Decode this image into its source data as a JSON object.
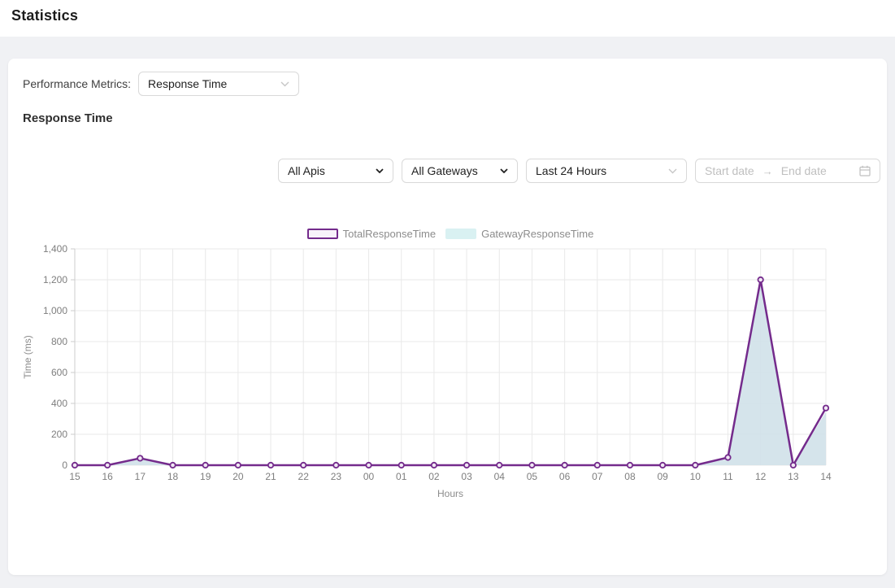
{
  "page": {
    "title": "Statistics",
    "background": "#f0f1f4"
  },
  "card": {
    "metrics": {
      "label": "Performance Metrics:",
      "value": "Response Time"
    },
    "heading": "Response Time",
    "filters": {
      "api": {
        "value": "All Apis"
      },
      "gateway": {
        "value": "All Gateways"
      },
      "time_range": {
        "value": "Last 24 Hours"
      },
      "date_range": {
        "start_placeholder": "Start date",
        "end_placeholder": "End date",
        "separator": "→"
      }
    }
  },
  "icons": {
    "metric_select_chevron": "chevron-down",
    "api_select_chevron": "chevron-down",
    "gateway_select_chevron": "chevron-down",
    "range_select_chevron": "chevron-down",
    "date_picker_calendar": "calendar",
    "range_separator": "arrow-right"
  },
  "chart_data": {
    "type": "line",
    "title": "",
    "xlabel": "Hours",
    "ylabel": "Time (ms)",
    "ylim": [
      0,
      1400
    ],
    "y_tick_step": 200,
    "grid": true,
    "legend_position": "top",
    "categories": [
      "15",
      "16",
      "17",
      "18",
      "19",
      "20",
      "21",
      "22",
      "23",
      "00",
      "01",
      "02",
      "03",
      "04",
      "05",
      "06",
      "07",
      "08",
      "09",
      "10",
      "11",
      "12",
      "13",
      "14"
    ],
    "series": [
      {
        "name": "TotalResponseTime",
        "type": "line",
        "color": "#742b8c",
        "marker_fill": "#f0e7f4",
        "legend_fill": "#f8f2fa",
        "values": [
          0,
          0,
          45,
          0,
          0,
          0,
          0,
          0,
          0,
          0,
          0,
          0,
          0,
          0,
          0,
          0,
          0,
          0,
          0,
          0,
          50,
          1200,
          0,
          370
        ]
      },
      {
        "name": "GatewayResponseTime",
        "type": "area",
        "color": "#d0e1e9",
        "legend_fill": "#d9f1f2",
        "values": [
          0,
          0,
          40,
          0,
          0,
          0,
          0,
          0,
          0,
          0,
          0,
          0,
          0,
          0,
          0,
          0,
          0,
          0,
          0,
          0,
          40,
          1195,
          0,
          345
        ]
      }
    ],
    "axis_text_color": "#7e7e7e",
    "axis_title_color": "#8c8c8c",
    "grid_color": "#e9e9e9",
    "axis_line_color": "#cccccc"
  }
}
